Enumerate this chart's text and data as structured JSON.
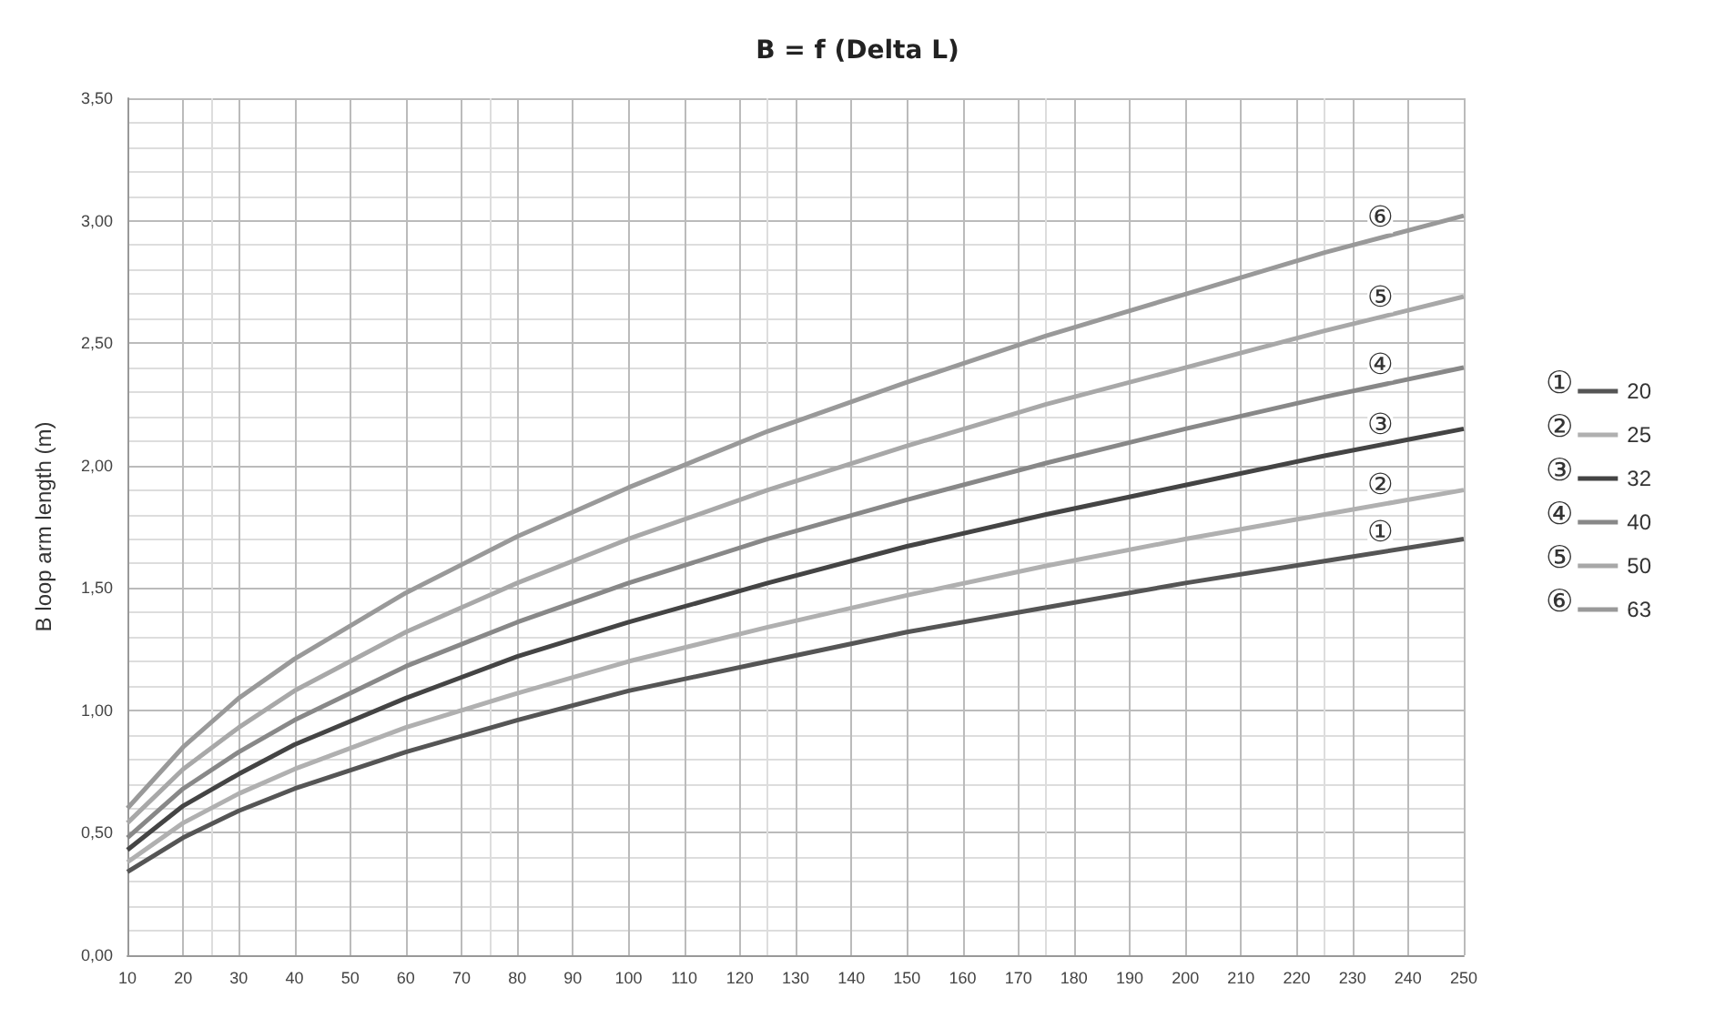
{
  "chart_data": {
    "type": "line",
    "title": "B = f (Delta L)",
    "ylabel": "B loop arm length (m)",
    "x": [
      10,
      20,
      30,
      40,
      60,
      80,
      100,
      125,
      150,
      175,
      200,
      225,
      250
    ],
    "series": [
      {
        "name": "20",
        "color": "#555555",
        "values": [
          0.34,
          0.48,
          0.59,
          0.68,
          0.83,
          0.96,
          1.08,
          1.2,
          1.32,
          1.42,
          1.52,
          1.61,
          1.7
        ]
      },
      {
        "name": "25",
        "color": "#b0b0b0",
        "values": [
          0.38,
          0.54,
          0.66,
          0.76,
          0.93,
          1.07,
          1.2,
          1.34,
          1.47,
          1.59,
          1.7,
          1.8,
          1.9
        ]
      },
      {
        "name": "32",
        "color": "#444444",
        "values": [
          0.43,
          0.61,
          0.74,
          0.86,
          1.05,
          1.22,
          1.36,
          1.52,
          1.67,
          1.8,
          1.92,
          2.04,
          2.15
        ]
      },
      {
        "name": "40",
        "color": "#888888",
        "values": [
          0.48,
          0.68,
          0.83,
          0.96,
          1.18,
          1.36,
          1.52,
          1.7,
          1.86,
          2.01,
          2.15,
          2.28,
          2.4
        ]
      },
      {
        "name": "50",
        "color": "#a8a8a8",
        "values": [
          0.54,
          0.76,
          0.93,
          1.08,
          1.32,
          1.52,
          1.7,
          1.9,
          2.08,
          2.25,
          2.4,
          2.55,
          2.69
        ]
      },
      {
        "name": "63",
        "color": "#999999",
        "values": [
          0.6,
          0.85,
          1.05,
          1.21,
          1.48,
          1.71,
          1.91,
          2.14,
          2.34,
          2.53,
          2.7,
          2.87,
          3.02
        ]
      }
    ],
    "annotations": [
      "①",
      "②",
      "③",
      "④",
      "⑤",
      "⑥"
    ],
    "xlim": [
      10,
      250
    ],
    "xticks": [
      10,
      20,
      30,
      40,
      50,
      60,
      70,
      80,
      90,
      100,
      110,
      120,
      130,
      140,
      150,
      160,
      170,
      180,
      190,
      200,
      210,
      220,
      230,
      240,
      250
    ],
    "ylim": [
      0,
      3.5
    ],
    "yticks": [
      {
        "value": 0,
        "label": "0,00"
      },
      {
        "value": 0.5,
        "label": "0,50"
      },
      {
        "value": 1,
        "label": "1,00"
      },
      {
        "value": 1.5,
        "label": "1,50"
      },
      {
        "value": 2,
        "label": "2,00"
      },
      {
        "value": 2.5,
        "label": "2,50"
      },
      {
        "value": 3,
        "label": "3,00"
      },
      {
        "value": 3.5,
        "label": "3,50"
      }
    ],
    "grid": true,
    "legend": "right",
    "marker": "none",
    "line_style": "solid"
  }
}
